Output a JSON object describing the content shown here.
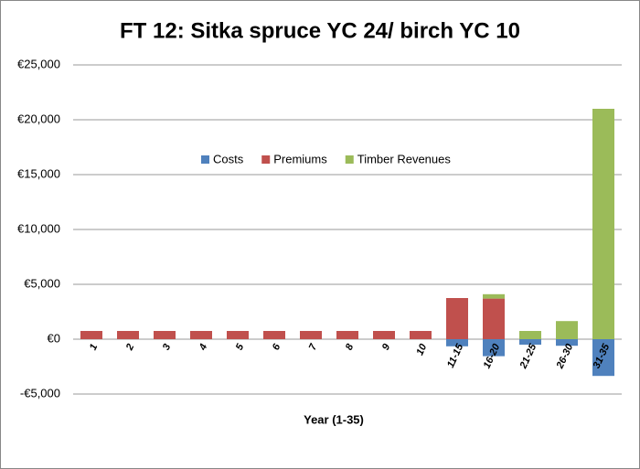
{
  "chart_data": {
    "type": "stacked-bar",
    "title": "FT 12: Sitka spruce YC 24/ birch YC 10",
    "x_label": "Year (1-35)",
    "categories": [
      "1",
      "2",
      "3",
      "4",
      "5",
      "6",
      "7",
      "8",
      "9",
      "10",
      "11-15",
      "16-20",
      "21-25",
      "26-30",
      "31-35"
    ],
    "series": [
      {
        "name": "Costs",
        "color": "#4f81bd",
        "values": [
          0,
          0,
          0,
          0,
          0,
          0,
          0,
          0,
          0,
          0,
          -650,
          -1550,
          -500,
          -600,
          -3350
        ]
      },
      {
        "name": "Premiums",
        "color": "#c0504d",
        "values": [
          750,
          750,
          750,
          750,
          750,
          750,
          750,
          750,
          750,
          750,
          3750,
          3700,
          0,
          0,
          0
        ]
      },
      {
        "name": "Timber Revenues",
        "color": "#9bbb59",
        "values": [
          0,
          0,
          0,
          0,
          0,
          0,
          0,
          0,
          0,
          0,
          0,
          400,
          750,
          1650,
          21000
        ]
      }
    ],
    "ylim": [
      -5000,
      25000
    ],
    "yticks": [
      {
        "value": -5000,
        "label": "-€5,000"
      },
      {
        "value": 0,
        "label": "€0"
      },
      {
        "value": 5000,
        "label": "€5,000"
      },
      {
        "value": 10000,
        "label": "€10,000"
      },
      {
        "value": 15000,
        "label": "€15,000"
      },
      {
        "value": 20000,
        "label": "€20,000"
      },
      {
        "value": 25000,
        "label": "€25,000"
      }
    ],
    "grid": true,
    "legend": "center"
  }
}
